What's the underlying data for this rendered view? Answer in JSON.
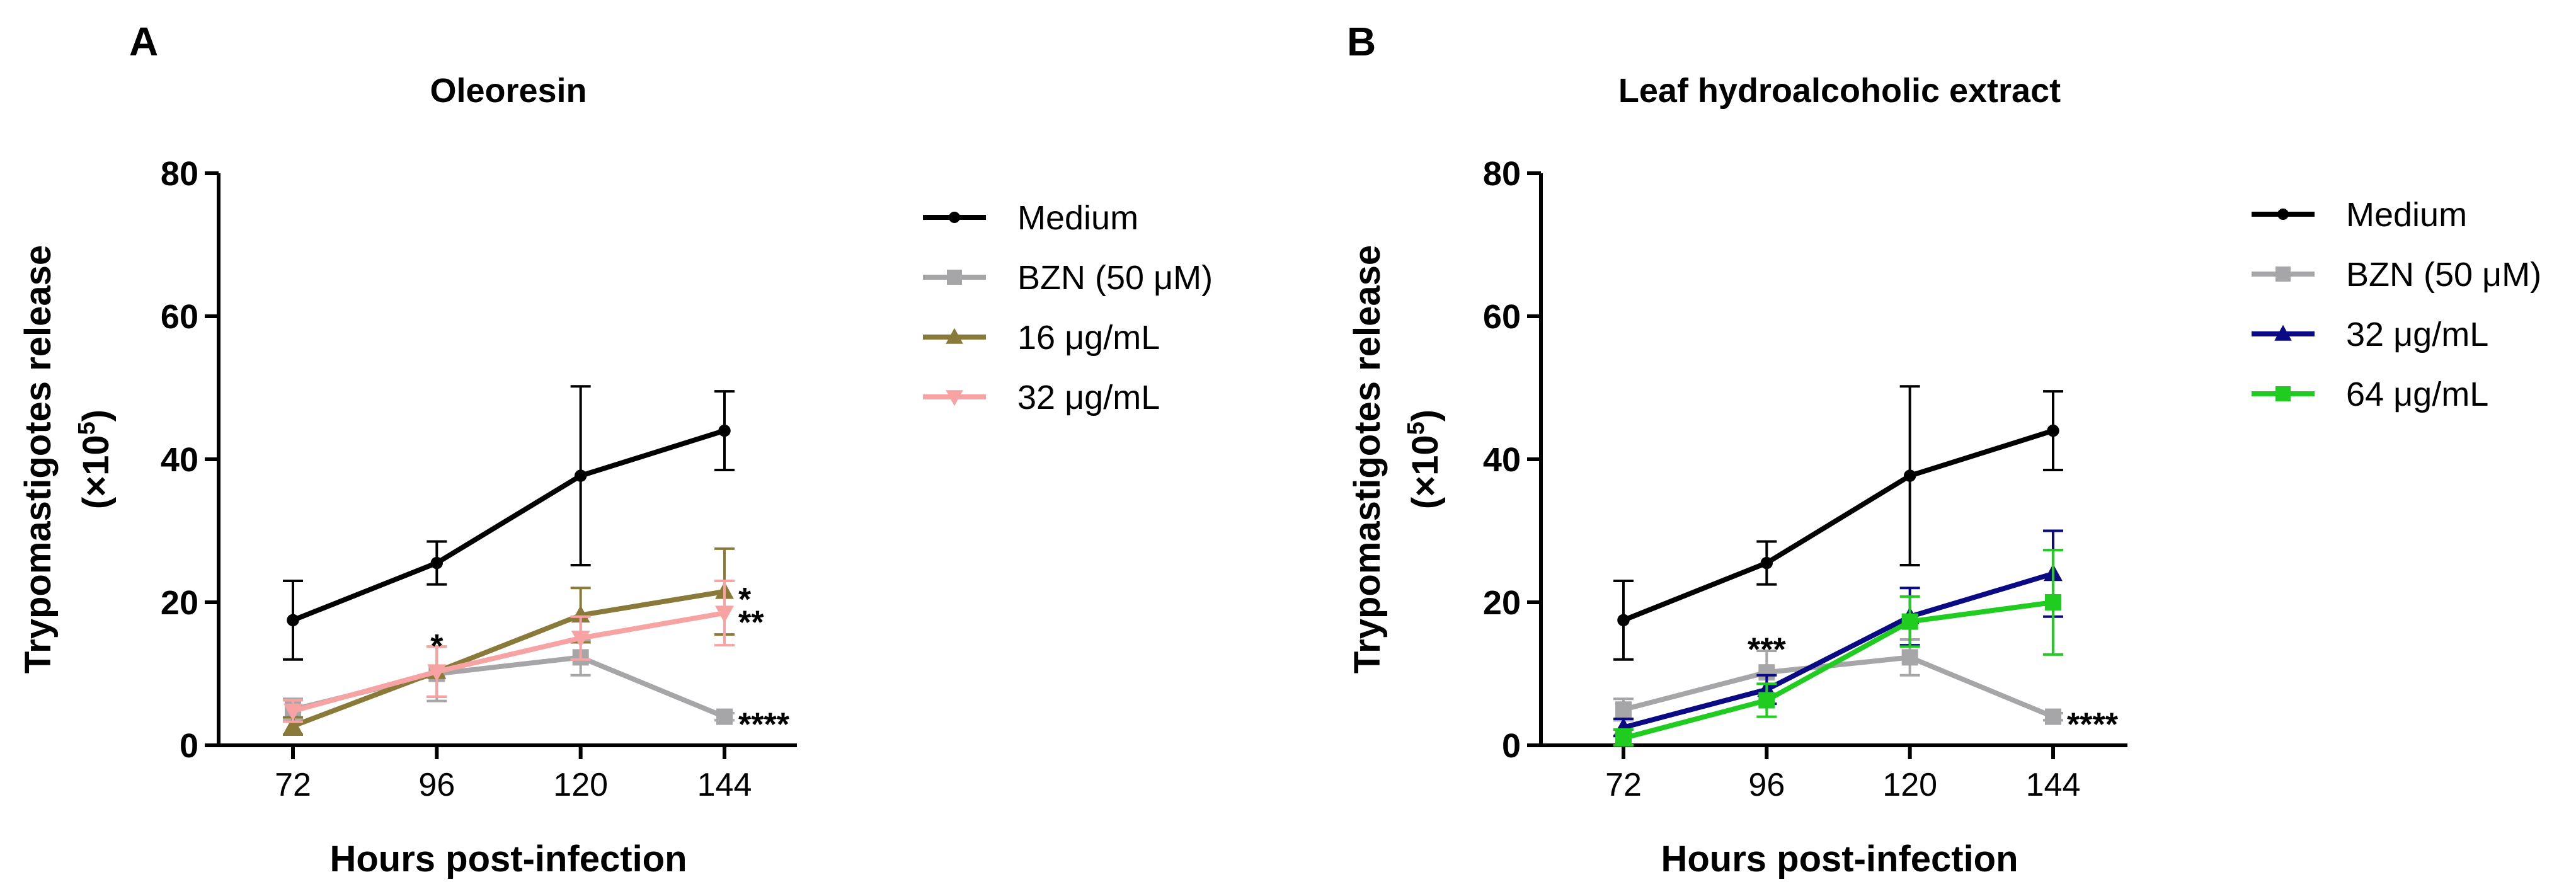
{
  "chart_data": [
    {
      "type": "line",
      "panel": "A",
      "title": "Oleoresin",
      "xlabel": "Hours post-infection",
      "ylabel_main": "Trypomastigotes release",
      "ylabel_sub_prefix": "(×10",
      "ylabel_sub_exp": "5",
      "ylabel_sub_suffix": ")",
      "x": [
        72,
        96,
        120,
        144
      ],
      "x_tick_labels": [
        "72",
        "96",
        "120",
        "144"
      ],
      "ylim": [
        0,
        80
      ],
      "y_ticks": [
        0,
        20,
        40,
        60,
        80
      ],
      "y_tick_labels": [
        "0",
        "20",
        "40",
        "60",
        "80"
      ],
      "grid": false,
      "legend_position": "right",
      "series": [
        {
          "name": "Medium",
          "color": "#000000",
          "marker": "circle",
          "values": [
            17.5,
            25.5,
            37.7,
            44.0
          ],
          "errors": [
            5.5,
            3.0,
            12.5,
            5.5
          ]
        },
        {
          "name": "BZN (50 μM)",
          "color": "#a6a6a8",
          "marker": "square",
          "values": [
            5.0,
            10.0,
            12.3,
            4.0
          ],
          "errors": [
            1.5,
            3.8,
            2.5,
            0.5
          ]
        },
        {
          "name": "16 μg/mL",
          "color": "#8a7a3a",
          "marker": "triangle",
          "values": [
            2.7,
            10.3,
            18.2,
            21.5
          ],
          "errors": [
            1.2,
            3.5,
            3.8,
            6.0
          ]
        },
        {
          "name": "32 μg/mL",
          "color": "#f7a3a3",
          "marker": "triangle-down",
          "values": [
            4.8,
            10.3,
            15.0,
            18.5
          ],
          "errors": [
            1.5,
            3.5,
            3.0,
            4.5
          ]
        }
      ],
      "annotations": [
        {
          "text": "*",
          "x": 96,
          "y": 15.0,
          "align": "middle"
        },
        {
          "text": "*",
          "x": 144,
          "y": 21.5,
          "align": "right"
        },
        {
          "text": "**",
          "x": 144,
          "y": 18.3,
          "align": "right"
        },
        {
          "text": "****",
          "x": 144,
          "y": 4.0,
          "align": "right"
        }
      ]
    },
    {
      "type": "line",
      "panel": "B",
      "title": "Leaf hydroalcoholic extract",
      "xlabel": "Hours post-infection",
      "ylabel_main": "Trypomastigotes release",
      "ylabel_sub_prefix": "(×10",
      "ylabel_sub_exp": "5",
      "ylabel_sub_suffix": ")",
      "x": [
        72,
        96,
        120,
        144
      ],
      "x_tick_labels": [
        "72",
        "96",
        "120",
        "144"
      ],
      "ylim": [
        0,
        80
      ],
      "y_ticks": [
        0,
        20,
        40,
        60,
        80
      ],
      "y_tick_labels": [
        "0",
        "20",
        "40",
        "60",
        "80"
      ],
      "grid": false,
      "legend_position": "right",
      "series": [
        {
          "name": "Medium",
          "color": "#000000",
          "marker": "circle",
          "values": [
            17.5,
            25.5,
            37.7,
            44.0
          ],
          "errors": [
            5.5,
            3.0,
            12.5,
            5.5
          ]
        },
        {
          "name": "BZN (50 μM)",
          "color": "#a6a6a8",
          "marker": "square",
          "values": [
            5.0,
            10.2,
            12.3,
            4.0
          ],
          "errors": [
            1.5,
            3.0,
            2.5,
            0.5
          ]
        },
        {
          "name": "32 μg/mL",
          "color": "#0a0a84",
          "marker": "triangle",
          "values": [
            2.5,
            7.8,
            18.0,
            24.0
          ],
          "errors": [
            1.2,
            2.0,
            4.0,
            6.0
          ]
        },
        {
          "name": "64 μg/mL",
          "color": "#1fcc1f",
          "marker": "square",
          "values": [
            1.0,
            6.3,
            17.3,
            20.0
          ],
          "errors": [
            1.2,
            2.3,
            3.5,
            7.3
          ]
        }
      ],
      "annotations": [
        {
          "text": "***",
          "x": 96,
          "y": 14.5,
          "align": "middle"
        },
        {
          "text": "****",
          "x": 144,
          "y": 4.0,
          "align": "right"
        }
      ]
    }
  ]
}
